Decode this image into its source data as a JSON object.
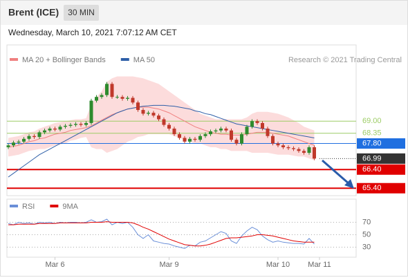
{
  "header": {
    "title": "Brent (ICE)",
    "timeframe": "30 MIN",
    "timestamp": "Wednesday, March 10, 2021 7:07:12 AM CET"
  },
  "chart_data": [
    {
      "type": "candlestick",
      "credit": "Research © 2021 Trading Central",
      "ylim": [
        65.0,
        72.2
      ],
      "open": [
        67.6,
        67.7,
        67.85,
        67.9,
        68.05,
        68.2,
        68.15,
        68.4,
        68.5,
        68.6,
        68.55,
        68.7,
        68.75,
        68.8,
        68.85,
        68.8,
        68.9,
        70.1,
        70.3,
        70.4,
        71.0,
        70.3,
        70.3,
        70.2,
        70.25,
        70.0,
        69.6,
        69.4,
        69.45,
        69.3,
        69.1,
        68.8,
        68.6,
        68.3,
        68.1,
        67.9,
        68.05,
        68.0,
        68.2,
        68.3,
        68.45,
        68.5,
        68.6,
        68.5,
        68.0,
        67.8,
        68.3,
        68.7,
        69.0,
        68.9,
        68.6,
        68.2,
        67.8,
        67.7,
        67.6,
        67.55,
        67.5,
        67.4,
        67.3,
        67.6,
        null
      ],
      "high": [
        67.8,
        67.95,
        68.0,
        68.15,
        68.3,
        68.3,
        68.5,
        68.6,
        68.7,
        68.7,
        68.8,
        68.85,
        68.9,
        68.95,
        68.95,
        69.0,
        70.2,
        70.4,
        70.5,
        71.1,
        71.1,
        70.4,
        70.4,
        70.35,
        70.35,
        70.1,
        69.7,
        69.55,
        69.55,
        69.4,
        69.2,
        68.9,
        68.7,
        68.4,
        68.2,
        68.15,
        68.15,
        68.3,
        68.4,
        68.55,
        68.6,
        68.7,
        68.7,
        68.6,
        68.1,
        68.4,
        68.8,
        69.1,
        69.1,
        69.0,
        68.7,
        68.3,
        67.9,
        67.8,
        67.7,
        67.65,
        67.6,
        67.5,
        67.7,
        67.7,
        null
      ],
      "low": [
        67.5,
        67.6,
        67.75,
        67.8,
        67.95,
        68.05,
        68.05,
        68.3,
        68.4,
        68.45,
        68.45,
        68.6,
        68.65,
        68.7,
        68.7,
        68.7,
        68.8,
        70.0,
        70.2,
        70.3,
        70.2,
        70.2,
        70.1,
        70.1,
        69.9,
        69.5,
        69.3,
        69.3,
        69.2,
        69.0,
        68.7,
        68.5,
        68.2,
        68.0,
        67.8,
        67.8,
        67.9,
        67.9,
        68.1,
        68.2,
        68.35,
        68.4,
        68.4,
        67.9,
        67.7,
        67.7,
        68.2,
        68.6,
        68.8,
        68.5,
        68.1,
        67.7,
        67.6,
        67.5,
        67.45,
        67.4,
        67.3,
        67.2,
        67.2,
        66.9,
        null
      ],
      "close": [
        67.7,
        67.85,
        67.9,
        68.05,
        68.2,
        68.15,
        68.4,
        68.5,
        68.6,
        68.55,
        68.7,
        68.75,
        68.8,
        68.85,
        68.8,
        68.9,
        70.1,
        70.3,
        70.4,
        71.0,
        70.3,
        70.3,
        70.2,
        70.25,
        70.0,
        69.6,
        69.4,
        69.45,
        69.3,
        69.1,
        68.8,
        68.6,
        68.3,
        68.1,
        67.9,
        68.05,
        68.0,
        68.2,
        68.3,
        68.45,
        68.5,
        68.6,
        68.5,
        68.0,
        67.8,
        68.3,
        68.7,
        69.0,
        68.9,
        68.6,
        68.2,
        67.8,
        67.7,
        67.6,
        67.55,
        67.5,
        67.4,
        67.3,
        67.6,
        66.99,
        null
      ],
      "up_color": "#2e8b2e",
      "down_color": "#c0392b",
      "series": [
        {
          "name": "MA 20 + Bollinger Bands",
          "color": "#f08080",
          "band_color": "#fbd3d3",
          "values": [
            67.6,
            67.65,
            67.7,
            67.8,
            67.9,
            67.95,
            68.05,
            68.1,
            68.2,
            68.3,
            68.35,
            68.4,
            68.5,
            68.55,
            68.6,
            68.65,
            68.75,
            68.9,
            69.05,
            69.2,
            69.35,
            69.45,
            69.55,
            69.65,
            69.7,
            69.75,
            69.75,
            69.75,
            69.7,
            69.65,
            69.55,
            69.45,
            69.3,
            69.15,
            69.0,
            68.85,
            68.7,
            68.6,
            68.5,
            68.4,
            68.35,
            68.3,
            68.3,
            68.25,
            68.25,
            68.25,
            68.3,
            68.35,
            68.4,
            68.4,
            68.4,
            68.35,
            68.3,
            68.25,
            68.2,
            68.1,
            68.0,
            67.9,
            67.8,
            67.7,
            null
          ],
          "upper": [
            68.1,
            68.15,
            68.2,
            68.3,
            68.4,
            68.45,
            68.6,
            68.7,
            68.8,
            68.9,
            68.95,
            69.0,
            69.05,
            69.1,
            69.1,
            69.15,
            69.9,
            70.3,
            70.6,
            71.1,
            71.3,
            71.4,
            71.4,
            71.4,
            71.4,
            71.35,
            71.3,
            71.2,
            71.1,
            71.0,
            70.8,
            70.6,
            70.4,
            70.2,
            70.0,
            69.8,
            69.6,
            69.4,
            69.3,
            69.2,
            69.1,
            69.1,
            69.1,
            69.1,
            69.1,
            69.1,
            69.2,
            69.4,
            69.5,
            69.5,
            69.5,
            69.45,
            69.4,
            69.3,
            69.2,
            69.05,
            68.9,
            68.7,
            68.6,
            68.5,
            null
          ],
          "lower": [
            67.1,
            67.15,
            67.2,
            67.3,
            67.4,
            67.45,
            67.5,
            67.5,
            67.6,
            67.7,
            67.75,
            67.8,
            67.95,
            68.0,
            68.1,
            68.15,
            67.6,
            67.5,
            67.5,
            67.3,
            67.4,
            67.5,
            67.7,
            67.9,
            68.0,
            68.15,
            68.2,
            68.3,
            68.3,
            68.3,
            68.3,
            68.3,
            68.2,
            68.1,
            68.0,
            67.9,
            67.8,
            67.8,
            67.7,
            67.6,
            67.6,
            67.5,
            67.5,
            67.4,
            67.4,
            67.4,
            67.4,
            67.3,
            67.3,
            67.3,
            67.3,
            67.25,
            67.2,
            67.2,
            67.2,
            67.15,
            67.1,
            67.1,
            67.0,
            66.9,
            null
          ]
        },
        {
          "name": "MA 50",
          "color": "#2e5fa8",
          "values": [
            66.0,
            66.2,
            66.4,
            66.6,
            66.8,
            67.0,
            67.2,
            67.35,
            67.5,
            67.65,
            67.8,
            67.95,
            68.1,
            68.25,
            68.4,
            68.55,
            68.7,
            68.85,
            69.0,
            69.15,
            69.3,
            69.45,
            69.55,
            69.65,
            69.7,
            69.75,
            69.8,
            69.82,
            69.85,
            69.85,
            69.85,
            69.82,
            69.8,
            69.75,
            69.7,
            69.65,
            69.55,
            69.5,
            69.4,
            69.35,
            69.25,
            69.15,
            69.05,
            68.95,
            68.85,
            68.8,
            68.75,
            68.7,
            68.65,
            68.6,
            68.55,
            68.5,
            68.45,
            68.4,
            68.35,
            68.3,
            68.25,
            68.2,
            68.15,
            68.1,
            null
          ]
        }
      ],
      "levels": [
        {
          "value": 69.0,
          "label": "69.00",
          "color": "#9ccc65",
          "style": "text"
        },
        {
          "value": 68.35,
          "label": "68.35",
          "color": "#9ccc65",
          "style": "text"
        },
        {
          "value": 67.8,
          "label": "67.80",
          "color": "#1f6fe0",
          "style": "box"
        },
        {
          "value": 66.99,
          "label": "66.99",
          "color": "#333333",
          "style": "current"
        },
        {
          "value": 66.4,
          "label": "66.40",
          "color": "#e00000",
          "style": "box"
        },
        {
          "value": 65.4,
          "label": "65.40",
          "color": "#e00000",
          "style": "box"
        }
      ]
    },
    {
      "type": "line",
      "ylim": [
        15,
        105
      ],
      "yticks": [
        30,
        50,
        70
      ],
      "categories": [
        null,
        null,
        null,
        null,
        null,
        null,
        null,
        null,
        null,
        "Mar 6",
        null,
        null,
        null,
        null,
        null,
        null,
        null,
        null,
        null,
        null,
        null,
        null,
        null,
        null,
        null,
        null,
        null,
        null,
        null,
        null,
        null,
        "Mar 9",
        null,
        null,
        null,
        null,
        null,
        null,
        null,
        null,
        null,
        null,
        null,
        null,
        null,
        null,
        null,
        null,
        null,
        null,
        null,
        null,
        "Mar 10",
        null,
        null,
        null,
        null,
        null,
        null,
        null,
        "Mar 11"
      ],
      "series": [
        {
          "name": "RSI",
          "color": "#6a8fd8",
          "values": [
            68,
            66,
            70,
            68,
            69,
            67,
            70,
            69,
            70,
            68,
            70,
            69,
            70,
            70,
            69,
            70,
            74,
            70,
            71,
            75,
            66,
            70,
            68,
            70,
            62,
            50,
            44,
            50,
            40,
            38,
            36,
            35,
            32,
            30,
            28,
            33,
            32,
            38,
            40,
            45,
            50,
            55,
            52,
            40,
            36,
            48,
            56,
            62,
            58,
            48,
            42,
            38,
            40,
            38,
            37,
            36,
            36,
            35,
            44,
            35,
            null
          ]
        },
        {
          "name": "9MA",
          "color": "#e00000",
          "values": [
            66,
            66,
            67,
            67,
            67,
            67,
            68,
            68,
            68,
            68,
            69,
            69,
            69,
            69,
            69,
            69,
            70,
            70,
            70,
            71,
            70,
            70,
            70,
            70,
            69,
            66,
            62,
            59,
            55,
            51,
            47,
            43,
            40,
            37,
            34,
            33,
            32,
            32,
            33,
            35,
            38,
            41,
            44,
            45,
            45,
            46,
            47,
            48,
            50,
            50,
            49,
            48,
            46,
            44,
            42,
            40,
            39,
            38,
            38,
            38,
            null
          ]
        }
      ]
    }
  ]
}
